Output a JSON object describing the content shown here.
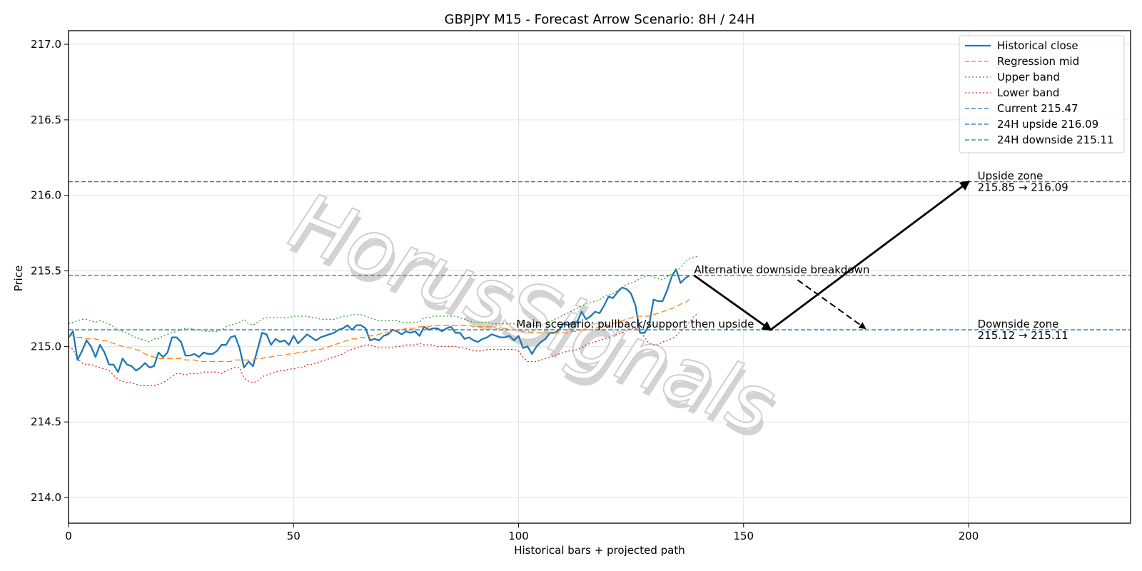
{
  "chart_data": {
    "type": "line",
    "title": "GBPJPY M15 - Forecast Arrow Scenario: 8H / 24H",
    "xlabel": "Historical bars + projected path",
    "ylabel": "Price",
    "xlim": [
      0,
      236
    ],
    "ylim": [
      213.83,
      217.09
    ],
    "xticks": [
      "0",
      "50",
      "100",
      "150",
      "200"
    ],
    "yticks": [
      "214.0",
      "214.5",
      "215.0",
      "215.5",
      "216.0",
      "216.5",
      "217.0"
    ],
    "grid": true,
    "legend_placement": "top-right",
    "watermark": "HorusSignals",
    "series": [
      {
        "name": "Historical close",
        "style": "solid",
        "color": "#1f77b4",
        "values": [
          215.06,
          215.1,
          214.91,
          214.97,
          215.04,
          215.0,
          214.93,
          215.01,
          214.96,
          214.88,
          214.88,
          214.83,
          214.92,
          214.88,
          214.87,
          214.84,
          214.86,
          214.89,
          214.86,
          214.87,
          214.96,
          214.93,
          214.96,
          215.06,
          215.06,
          215.03,
          214.94,
          214.94,
          214.95,
          214.93,
          214.96,
          214.95,
          214.95,
          214.97,
          215.01,
          215.01,
          215.06,
          215.07,
          214.99,
          214.86,
          214.9,
          214.87,
          214.98,
          215.09,
          215.08,
          215.01,
          215.05,
          215.03,
          215.04,
          215.01,
          215.07,
          215.02,
          215.05,
          215.08,
          215.06,
          215.04,
          215.06,
          215.07,
          215.08,
          215.09,
          215.11,
          215.12,
          215.14,
          215.11,
          215.14,
          215.14,
          215.12,
          215.04,
          215.05,
          215.04,
          215.07,
          215.08,
          215.11,
          215.1,
          215.08,
          215.1,
          215.09,
          215.1,
          215.07,
          215.13,
          215.11,
          215.12,
          215.12,
          215.1,
          215.12,
          215.13,
          215.09,
          215.09,
          215.05,
          215.06,
          215.04,
          215.03,
          215.05,
          215.06,
          215.08,
          215.07,
          215.06,
          215.06,
          215.07,
          215.04,
          215.07,
          214.99,
          215.0,
          214.95,
          215.0,
          215.03,
          215.05,
          215.09,
          215.09,
          215.11,
          215.15,
          215.14,
          215.16,
          215.16,
          215.23,
          215.18,
          215.2,
          215.23,
          215.22,
          215.27,
          215.33,
          215.32,
          215.36,
          215.39,
          215.38,
          215.35,
          215.27,
          215.09,
          215.09,
          215.14,
          215.31,
          215.3,
          215.3,
          215.37,
          215.46,
          215.51,
          215.42,
          215.45,
          215.47
        ]
      },
      {
        "name": "Regression mid",
        "style": "dashed",
        "color": "#ff7f0e",
        "values": [
          215.07,
          215.07,
          215.06,
          215.06,
          215.05,
          215.05,
          215.05,
          215.04,
          215.04,
          215.03,
          215.02,
          215.01,
          215.0,
          214.99,
          214.99,
          214.98,
          214.97,
          214.95,
          214.94,
          214.93,
          214.92,
          214.92,
          214.92,
          214.92,
          214.92,
          214.92,
          214.91,
          214.91,
          214.91,
          214.9,
          214.9,
          214.9,
          214.9,
          214.9,
          214.9,
          214.9,
          214.9,
          214.91,
          214.91,
          214.91,
          214.91,
          214.91,
          214.92,
          214.92,
          214.93,
          214.93,
          214.94,
          214.94,
          214.94,
          214.95,
          214.95,
          214.96,
          214.96,
          214.97,
          214.97,
          214.98,
          214.98,
          214.99,
          215.0,
          215.01,
          215.02,
          215.03,
          215.04,
          215.05,
          215.05,
          215.06,
          215.06,
          215.07,
          215.07,
          215.08,
          215.09,
          215.09,
          215.1,
          215.11,
          215.11,
          215.12,
          215.12,
          215.12,
          215.13,
          215.13,
          215.13,
          215.14,
          215.14,
          215.14,
          215.14,
          215.14,
          215.14,
          215.14,
          215.14,
          215.14,
          215.13,
          215.13,
          215.13,
          215.13,
          215.13,
          215.12,
          215.12,
          215.12,
          215.11,
          215.11,
          215.11,
          215.1,
          215.1,
          215.09,
          215.09,
          215.09,
          215.09,
          215.09,
          215.09,
          215.09,
          215.09,
          215.09,
          215.1,
          215.1,
          215.11,
          215.11,
          215.11,
          215.12,
          215.13,
          215.13,
          215.14,
          215.15,
          215.16,
          215.17,
          215.18,
          215.19,
          215.2,
          215.2,
          215.2,
          215.2,
          215.21,
          215.22,
          215.23,
          215.24,
          215.25,
          215.26,
          215.28,
          215.29,
          215.31
        ]
      },
      {
        "name": "Upper band",
        "style": "dotted",
        "color": "#2ca02c",
        "values": [
          215.15,
          215.16,
          215.17,
          215.18,
          215.18,
          215.17,
          215.16,
          215.17,
          215.16,
          215.15,
          215.13,
          215.11,
          215.1,
          215.09,
          215.07,
          215.06,
          215.05,
          215.04,
          215.03,
          215.05,
          215.05,
          215.07,
          215.08,
          215.09,
          215.1,
          215.11,
          215.12,
          215.12,
          215.11,
          215.11,
          215.1,
          215.1,
          215.1,
          215.1,
          215.11,
          215.13,
          215.14,
          215.15,
          215.16,
          215.18,
          215.15,
          215.14,
          215.16,
          215.18,
          215.19,
          215.19,
          215.19,
          215.19,
          215.19,
          215.19,
          215.2,
          215.2,
          215.2,
          215.2,
          215.19,
          215.19,
          215.18,
          215.18,
          215.18,
          215.18,
          215.19,
          215.2,
          215.2,
          215.21,
          215.21,
          215.21,
          215.2,
          215.19,
          215.18,
          215.17,
          215.17,
          215.17,
          215.17,
          215.17,
          215.16,
          215.16,
          215.16,
          215.16,
          215.16,
          215.19,
          215.19,
          215.2,
          215.2,
          215.2,
          215.2,
          215.2,
          215.2,
          215.19,
          215.18,
          215.17,
          215.16,
          215.16,
          215.16,
          215.16,
          215.15,
          215.15,
          215.15,
          215.15,
          215.15,
          215.15,
          215.14,
          215.14,
          215.14,
          215.14,
          215.14,
          215.14,
          215.15,
          215.16,
          215.18,
          215.19,
          215.21,
          215.22,
          215.24,
          215.25,
          215.27,
          215.28,
          215.29,
          215.3,
          215.31,
          215.33,
          215.34,
          215.35,
          215.37,
          215.39,
          215.41,
          215.42,
          215.43,
          215.45,
          215.46,
          215.47,
          215.46,
          215.45,
          215.44,
          215.46,
          215.48,
          215.5,
          215.52,
          215.56,
          215.58,
          215.59,
          215.6
        ]
      },
      {
        "name": "Lower band",
        "style": "dotted",
        "color": "#d62728",
        "values": [
          215.0,
          214.98,
          214.92,
          214.89,
          214.88,
          214.88,
          214.87,
          214.86,
          214.85,
          214.84,
          214.81,
          214.78,
          214.77,
          214.76,
          214.76,
          214.75,
          214.74,
          214.74,
          214.74,
          214.74,
          214.75,
          214.76,
          214.78,
          214.8,
          214.82,
          214.82,
          214.81,
          214.82,
          214.82,
          214.82,
          214.83,
          214.83,
          214.83,
          214.83,
          214.82,
          214.84,
          214.85,
          214.86,
          214.86,
          214.79,
          214.77,
          214.76,
          214.77,
          214.8,
          214.81,
          214.82,
          214.83,
          214.84,
          214.84,
          214.85,
          214.85,
          214.86,
          214.86,
          214.88,
          214.88,
          214.89,
          214.9,
          214.91,
          214.92,
          214.93,
          214.94,
          214.95,
          214.97,
          214.98,
          214.99,
          215.0,
          215.01,
          215.01,
          215.0,
          214.99,
          214.99,
          214.99,
          214.99,
          215.0,
          215.0,
          215.01,
          215.01,
          215.01,
          215.02,
          215.01,
          215.01,
          215.01,
          215.0,
          215.0,
          215.0,
          215.0,
          215.0,
          214.99,
          214.99,
          214.98,
          214.97,
          214.97,
          214.97,
          214.98,
          214.98,
          214.98,
          214.98,
          214.98,
          214.98,
          214.98,
          214.97,
          214.93,
          214.9,
          214.9,
          214.9,
          214.91,
          214.92,
          214.93,
          214.94,
          214.95,
          214.96,
          214.97,
          214.97,
          214.98,
          214.99,
          215.01,
          215.02,
          215.03,
          215.04,
          215.05,
          215.06,
          215.07,
          215.08,
          215.09,
          215.11,
          215.12,
          215.12,
          215.1,
          215.06,
          215.02,
          215.01,
          215.01,
          215.03,
          215.04,
          215.05,
          215.07,
          215.1,
          215.13,
          215.16,
          215.2,
          215.22
        ]
      }
    ],
    "hlines": [
      {
        "name": "Current 215.47",
        "y": 215.47,
        "color": "#1f77b4"
      },
      {
        "name": "24H upside 216.09",
        "y": 216.09,
        "color": "#1f77b4"
      },
      {
        "name": "24H downside 215.11",
        "y": 215.11,
        "color": "#1f77b4"
      }
    ],
    "arrows": [
      {
        "label": "main-pullback",
        "from": [
          139,
          215.47
        ],
        "to": [
          156,
          215.11
        ],
        "style": "solid"
      },
      {
        "label": "main-upside",
        "from": [
          156,
          215.11
        ],
        "to": [
          200,
          216.09
        ],
        "style": "solid"
      },
      {
        "label": "alternative-downside",
        "from": [
          162,
          215.44
        ],
        "to": [
          177,
          215.12
        ],
        "style": "dashed"
      }
    ],
    "annotations": [
      {
        "text": "Alternative downside breakdown",
        "x": 139,
        "y": 215.47
      },
      {
        "text": "Main scenario: pullback/support then upside",
        "x": 99.5,
        "y": 215.11
      },
      {
        "lines": [
          "Upside zone",
          "215.85 → 216.09"
        ],
        "x": 202,
        "y": 216.09
      },
      {
        "lines": [
          "Downside zone",
          "215.12 → 215.11"
        ],
        "x": 202,
        "y": 215.11
      }
    ]
  }
}
